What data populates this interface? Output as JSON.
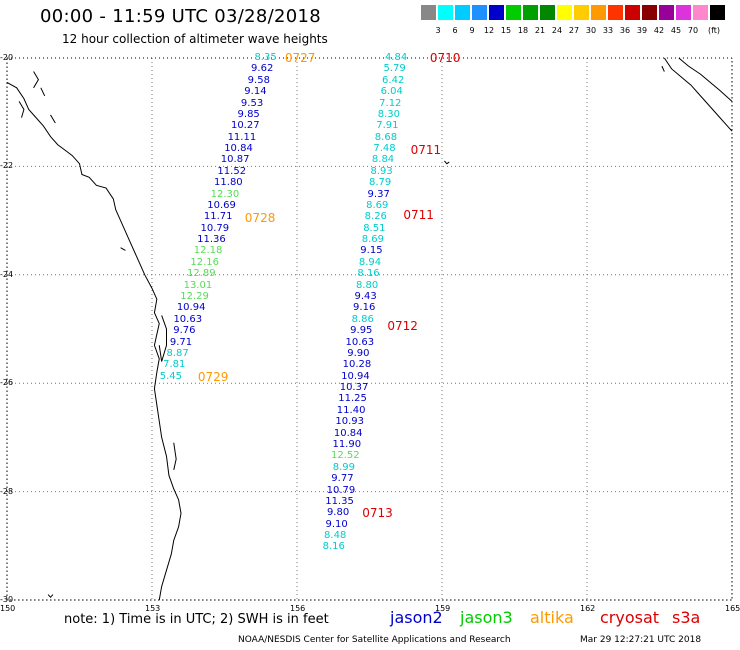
{
  "title": "00:00 - 11:59 UTC 03/28/2018",
  "subtitle": "12 hour collection of altimeter wave heights",
  "scale": {
    "unit": "(ft)",
    "colors": [
      "#888888",
      "#00ffff",
      "#00ccff",
      "#1e90ff",
      "#0000cc",
      "#00cc00",
      "#00a000",
      "#008800",
      "#ffff00",
      "#ffcc00",
      "#ff9900",
      "#ff3300",
      "#cc0000",
      "#880000",
      "#990099",
      "#dd33dd",
      "#ff88cc",
      "#000000"
    ],
    "labels": [
      "3",
      "6",
      "9",
      "12",
      "15",
      "18",
      "21",
      "24",
      "27",
      "30",
      "33",
      "36",
      "39",
      "42",
      "45",
      "70"
    ]
  },
  "axes": {
    "lat_labels": [
      "-20",
      "-22",
      "-24",
      "-26",
      "-28",
      "-30"
    ],
    "lat_values": [
      -20,
      -22,
      -24,
      -26,
      -28,
      -30
    ],
    "lon_labels": [
      "150",
      "153",
      "156",
      "159",
      "162",
      "165"
    ],
    "lon_values": [
      150,
      153,
      156,
      159,
      162,
      165
    ]
  },
  "map_extent": {
    "lon": [
      150,
      165
    ],
    "lat": [
      -30,
      -20
    ]
  },
  "satellites": {
    "jason2": "#0000cc",
    "jason3": "#00cc00",
    "altika": "#ff9900",
    "cryosat": "#dd0000",
    "s3a": "#00cccc",
    "altika_light": "#55dd55"
  },
  "tracks": [
    {
      "name": "altika-west",
      "points": [
        {
          "lon": 155.35,
          "lat": -20.0,
          "v": "8.35",
          "sat": "s3a"
        },
        {
          "lon": 155.28,
          "lat": -20.21,
          "v": "9.62",
          "sat": "jason2"
        },
        {
          "lon": 155.21,
          "lat": -20.42,
          "v": "9.58",
          "sat": "jason2"
        },
        {
          "lon": 155.14,
          "lat": -20.63,
          "v": "9.14",
          "sat": "jason2"
        },
        {
          "lon": 155.07,
          "lat": -20.84,
          "v": "9.53",
          "sat": "jason2"
        },
        {
          "lon": 155.0,
          "lat": -21.05,
          "v": "9.85",
          "sat": "jason2"
        },
        {
          "lon": 154.93,
          "lat": -21.26,
          "v": "10.27",
          "sat": "jason2"
        },
        {
          "lon": 154.86,
          "lat": -21.47,
          "v": "11.11",
          "sat": "jason2"
        },
        {
          "lon": 154.79,
          "lat": -21.68,
          "v": "10.84",
          "sat": "jason2"
        },
        {
          "lon": 154.72,
          "lat": -21.89,
          "v": "10.87",
          "sat": "jason2"
        },
        {
          "lon": 154.65,
          "lat": -22.1,
          "v": "11.52",
          "sat": "jason2"
        },
        {
          "lon": 154.58,
          "lat": -22.31,
          "v": "11.80",
          "sat": "jason2"
        },
        {
          "lon": 154.51,
          "lat": -22.52,
          "v": "12.30",
          "sat": "altika_light"
        },
        {
          "lon": 154.44,
          "lat": -22.73,
          "v": "10.69",
          "sat": "jason2"
        },
        {
          "lon": 154.37,
          "lat": -22.94,
          "v": "11.71",
          "sat": "jason2"
        },
        {
          "lon": 154.3,
          "lat": -23.15,
          "v": "10.79",
          "sat": "jason2"
        },
        {
          "lon": 154.23,
          "lat": -23.36,
          "v": "11.36",
          "sat": "jason2"
        },
        {
          "lon": 154.16,
          "lat": -23.57,
          "v": "12.18",
          "sat": "altika_light"
        },
        {
          "lon": 154.09,
          "lat": -23.78,
          "v": "12.16",
          "sat": "altika_light"
        },
        {
          "lon": 154.02,
          "lat": -23.99,
          "v": "12.89",
          "sat": "altika_light"
        },
        {
          "lon": 153.95,
          "lat": -24.2,
          "v": "13.01",
          "sat": "altika_light"
        },
        {
          "lon": 153.88,
          "lat": -24.41,
          "v": "12.29",
          "sat": "altika_light"
        },
        {
          "lon": 153.81,
          "lat": -24.62,
          "v": "10.94",
          "sat": "jason2"
        },
        {
          "lon": 153.74,
          "lat": -24.83,
          "v": "10.63",
          "sat": "jason2"
        },
        {
          "lon": 153.67,
          "lat": -25.04,
          "v": "9.76",
          "sat": "jason2"
        },
        {
          "lon": 153.6,
          "lat": -25.25,
          "v": "9.71",
          "sat": "jason2"
        },
        {
          "lon": 153.53,
          "lat": -25.46,
          "v": "8.87",
          "sat": "s3a"
        },
        {
          "lon": 153.46,
          "lat": -25.67,
          "v": "7.81",
          "sat": "s3a"
        },
        {
          "lon": 153.39,
          "lat": -25.88,
          "v": "5.45",
          "sat": "s3a"
        }
      ]
    },
    {
      "name": "cryosat-east",
      "points": [
        {
          "lon": 158.05,
          "lat": -20.0,
          "v": "4.84",
          "sat": "s3a"
        },
        {
          "lon": 158.02,
          "lat": -20.21,
          "v": "5.79",
          "sat": "s3a"
        },
        {
          "lon": 157.99,
          "lat": -20.42,
          "v": "6.42",
          "sat": "s3a"
        },
        {
          "lon": 157.96,
          "lat": -20.63,
          "v": "6.04",
          "sat": "s3a"
        },
        {
          "lon": 157.93,
          "lat": -20.84,
          "v": "7.12",
          "sat": "s3a"
        },
        {
          "lon": 157.9,
          "lat": -21.05,
          "v": "8.30",
          "sat": "s3a"
        },
        {
          "lon": 157.87,
          "lat": -21.26,
          "v": "7.91",
          "sat": "s3a"
        },
        {
          "lon": 157.84,
          "lat": -21.47,
          "v": "8.68",
          "sat": "s3a"
        },
        {
          "lon": 157.81,
          "lat": -21.68,
          "v": "7.48",
          "sat": "s3a"
        },
        {
          "lon": 157.78,
          "lat": -21.89,
          "v": "8.84",
          "sat": "s3a"
        },
        {
          "lon": 157.75,
          "lat": -22.1,
          "v": "8.93",
          "sat": "s3a"
        },
        {
          "lon": 157.72,
          "lat": -22.31,
          "v": "8.79",
          "sat": "s3a"
        },
        {
          "lon": 157.69,
          "lat": -22.52,
          "v": "9.37",
          "sat": "jason2"
        },
        {
          "lon": 157.66,
          "lat": -22.73,
          "v": "8.69",
          "sat": "s3a"
        },
        {
          "lon": 157.63,
          "lat": -22.94,
          "v": "8.26",
          "sat": "s3a"
        },
        {
          "lon": 157.6,
          "lat": -23.15,
          "v": "8.51",
          "sat": "s3a"
        },
        {
          "lon": 157.57,
          "lat": -23.36,
          "v": "8.69",
          "sat": "s3a"
        },
        {
          "lon": 157.54,
          "lat": -23.57,
          "v": "9.15",
          "sat": "jason2"
        },
        {
          "lon": 157.51,
          "lat": -23.78,
          "v": "8.94",
          "sat": "s3a"
        },
        {
          "lon": 157.48,
          "lat": -23.99,
          "v": "8.16",
          "sat": "s3a"
        },
        {
          "lon": 157.45,
          "lat": -24.2,
          "v": "8.80",
          "sat": "s3a"
        },
        {
          "lon": 157.42,
          "lat": -24.41,
          "v": "9.43",
          "sat": "jason2"
        },
        {
          "lon": 157.39,
          "lat": -24.62,
          "v": "9.16",
          "sat": "jason2"
        },
        {
          "lon": 157.36,
          "lat": -24.83,
          "v": "8.86",
          "sat": "s3a"
        },
        {
          "lon": 157.33,
          "lat": -25.04,
          "v": "9.95",
          "sat": "jason2"
        },
        {
          "lon": 157.3,
          "lat": -25.25,
          "v": "10.63",
          "sat": "jason2"
        },
        {
          "lon": 157.27,
          "lat": -25.46,
          "v": "9.90",
          "sat": "jason2"
        },
        {
          "lon": 157.24,
          "lat": -25.67,
          "v": "10.28",
          "sat": "jason2"
        },
        {
          "lon": 157.21,
          "lat": -25.88,
          "v": "10.94",
          "sat": "jason2"
        },
        {
          "lon": 157.18,
          "lat": -26.09,
          "v": "10.37",
          "sat": "jason2"
        },
        {
          "lon": 157.15,
          "lat": -26.3,
          "v": "11.25",
          "sat": "jason2"
        },
        {
          "lon": 157.12,
          "lat": -26.51,
          "v": "11.40",
          "sat": "jason2"
        },
        {
          "lon": 157.09,
          "lat": -26.72,
          "v": "10.93",
          "sat": "jason2"
        },
        {
          "lon": 157.06,
          "lat": -26.93,
          "v": "10.84",
          "sat": "jason2"
        },
        {
          "lon": 157.03,
          "lat": -27.14,
          "v": "11.90",
          "sat": "jason2"
        },
        {
          "lon": 157.0,
          "lat": -27.35,
          "v": "12.52",
          "sat": "altika_light"
        },
        {
          "lon": 156.97,
          "lat": -27.56,
          "v": "8.99",
          "sat": "s3a"
        },
        {
          "lon": 156.94,
          "lat": -27.77,
          "v": "9.77",
          "sat": "jason2"
        },
        {
          "lon": 156.91,
          "lat": -27.98,
          "v": "10.79",
          "sat": "jason2"
        },
        {
          "lon": 156.88,
          "lat": -28.19,
          "v": "11.35",
          "sat": "jason2"
        },
        {
          "lon": 156.85,
          "lat": -28.4,
          "v": "9.80",
          "sat": "jason2"
        },
        {
          "lon": 156.82,
          "lat": -28.61,
          "v": "9.10",
          "sat": "jason2"
        },
        {
          "lon": 156.79,
          "lat": -28.82,
          "v": "8.48",
          "sat": "s3a"
        },
        {
          "lon": 156.76,
          "lat": -29.03,
          "v": "8.16",
          "sat": "s3a"
        }
      ]
    }
  ],
  "time_tags": [
    {
      "lon": 155.75,
      "lat": -20.0,
      "text": "0727",
      "sat": "altika"
    },
    {
      "lon": 158.75,
      "lat": -20.0,
      "text": "0710",
      "sat": "cryosat"
    },
    {
      "lon": 158.35,
      "lat": -21.7,
      "text": "0711",
      "sat": "cryosat"
    },
    {
      "lon": 154.92,
      "lat": -22.95,
      "text": "0728",
      "sat": "altika"
    },
    {
      "lon": 158.2,
      "lat": -22.9,
      "text": "0711",
      "sat": "cryosat"
    },
    {
      "lon": 157.87,
      "lat": -24.94,
      "text": "0712",
      "sat": "cryosat"
    },
    {
      "lon": 153.95,
      "lat": -25.88,
      "text": "0729",
      "sat": "altika"
    },
    {
      "lon": 157.35,
      "lat": -28.4,
      "text": "0713",
      "sat": "cryosat"
    }
  ],
  "footer": {
    "note": "note: 1) Time is in UTC; 2) SWH is in feet",
    "legend": [
      {
        "text": "jason2",
        "sat": "jason2"
      },
      {
        "text": "jason3",
        "sat": "jason3"
      },
      {
        "text": "altika",
        "sat": "altika"
      },
      {
        "text": "cryosat",
        "sat": "cryosat"
      },
      {
        "text": "s3a",
        "sat": "cryosat"
      }
    ],
    "credit": "NOAA/NESDIS Center for Satellite Applications and Research",
    "stamp": "Mar 29 12:27:21 UTC 2018"
  }
}
